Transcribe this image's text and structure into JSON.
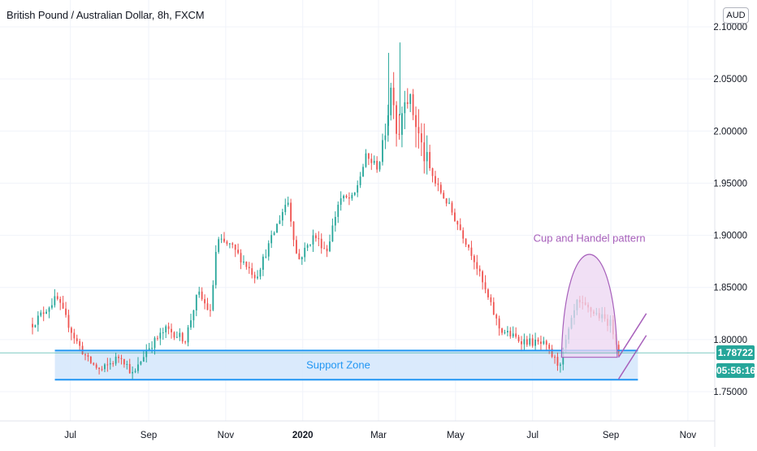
{
  "header": {
    "title": "British Pound / Australian Dollar, 8h, FXCM",
    "currency": "AUD"
  },
  "price_tags": {
    "last_price": "1.78722",
    "countdown": "05:56:16"
  },
  "annotations": {
    "pattern_label": "Cup and Handel pattern",
    "zone_label": "Support Zone"
  },
  "colors": {
    "up": "#26a69a",
    "down": "#ef5350",
    "support_line": "#2196f3",
    "support_fill": "#d3e6fb",
    "pattern_stroke": "#a760bb",
    "pattern_fill": "#ecd6f2",
    "price_tag_bg": "#26a69a",
    "grid": "#f0f3fa",
    "axis_text": "#131722"
  },
  "chart_data": {
    "type": "candlestick",
    "title": "British Pound / Australian Dollar, 8h, FXCM",
    "y_axis": {
      "ticks": [
        1.75,
        1.8,
        1.85,
        1.9,
        1.95,
        2.0,
        2.05,
        2.1
      ],
      "tick_labels": [
        "1.75000",
        "1.80000",
        "1.85000",
        "1.90000",
        "1.95000",
        "2.00000",
        "2.05000",
        "2.10000"
      ],
      "range": [
        1.72,
        2.11
      ]
    },
    "x_axis": {
      "tick_labels": [
        "Jul",
        "Sep",
        "Nov",
        "2020",
        "Mar",
        "May",
        "Jul",
        "Sep",
        "Nov"
      ],
      "tick_dates": [
        "2019-07",
        "2019-09",
        "2019-11",
        "2020-01",
        "2020-03",
        "2020-05",
        "2020-07",
        "2020-09",
        "2020-11"
      ],
      "range": [
        "2019-06-01",
        "2020-11-30"
      ]
    },
    "price_anchors": [
      [
        "2019-06-01",
        1.815
      ],
      [
        "2019-06-20",
        1.84
      ],
      [
        "2019-07-05",
        1.8
      ],
      [
        "2019-07-15",
        1.78
      ],
      [
        "2019-07-25",
        1.77
      ],
      [
        "2019-08-10",
        1.785
      ],
      [
        "2019-08-20",
        1.765
      ],
      [
        "2019-08-30",
        1.79
      ],
      [
        "2019-09-15",
        1.81
      ],
      [
        "2019-09-30",
        1.8
      ],
      [
        "2019-10-10",
        1.845
      ],
      [
        "2019-10-20",
        1.825
      ],
      [
        "2019-10-25",
        1.895
      ],
      [
        "2019-11-05",
        1.89
      ],
      [
        "2019-11-25",
        1.86
      ],
      [
        "2019-12-10",
        1.905
      ],
      [
        "2019-12-20",
        1.935
      ],
      [
        "2019-12-28",
        1.875
      ],
      [
        "2020-01-10",
        1.9
      ],
      [
        "2020-01-20",
        1.885
      ],
      [
        "2020-01-30",
        1.935
      ],
      [
        "2020-02-10",
        1.935
      ],
      [
        "2020-02-20",
        1.975
      ],
      [
        "2020-03-01",
        1.965
      ],
      [
        "2020-03-06",
        2.0
      ],
      [
        "2020-03-12",
        2.05
      ],
      [
        "2020-03-16",
        1.99
      ],
      [
        "2020-03-22",
        2.04
      ],
      [
        "2020-03-28",
        2.02
      ],
      [
        "2020-04-05",
        1.98
      ],
      [
        "2020-04-15",
        1.95
      ],
      [
        "2020-04-25",
        1.93
      ],
      [
        "2020-05-05",
        1.905
      ],
      [
        "2020-05-15",
        1.88
      ],
      [
        "2020-05-25",
        1.845
      ],
      [
        "2020-06-05",
        1.81
      ],
      [
        "2020-06-20",
        1.8
      ],
      [
        "2020-07-10",
        1.795
      ],
      [
        "2020-07-22",
        1.775
      ],
      [
        "2020-08-05",
        1.835
      ],
      [
        "2020-08-20",
        1.825
      ],
      [
        "2020-09-01",
        1.815
      ],
      [
        "2020-09-08",
        1.787
      ]
    ],
    "last_price": 1.78722,
    "countdown": "05:56:16",
    "support_zone": {
      "top": 1.7895,
      "bottom": 1.7615,
      "start": "2019-06-20",
      "end": "2020-09-25"
    },
    "cup_pattern": {
      "start": "2020-07-22",
      "end": "2020-09-08",
      "peak": 1.882,
      "base": 1.783
    },
    "handle_channel": [
      {
        "from": [
          "2020-09-09",
          1.783
        ],
        "to": [
          "2020-10-01",
          1.825
        ]
      },
      {
        "from": [
          "2020-09-09",
          1.762
        ],
        "to": [
          "2020-10-01",
          1.804
        ]
      }
    ],
    "annotations": [
      "Cup and Handel pattern",
      "Support Zone"
    ],
    "grid": true,
    "legend": "none"
  }
}
